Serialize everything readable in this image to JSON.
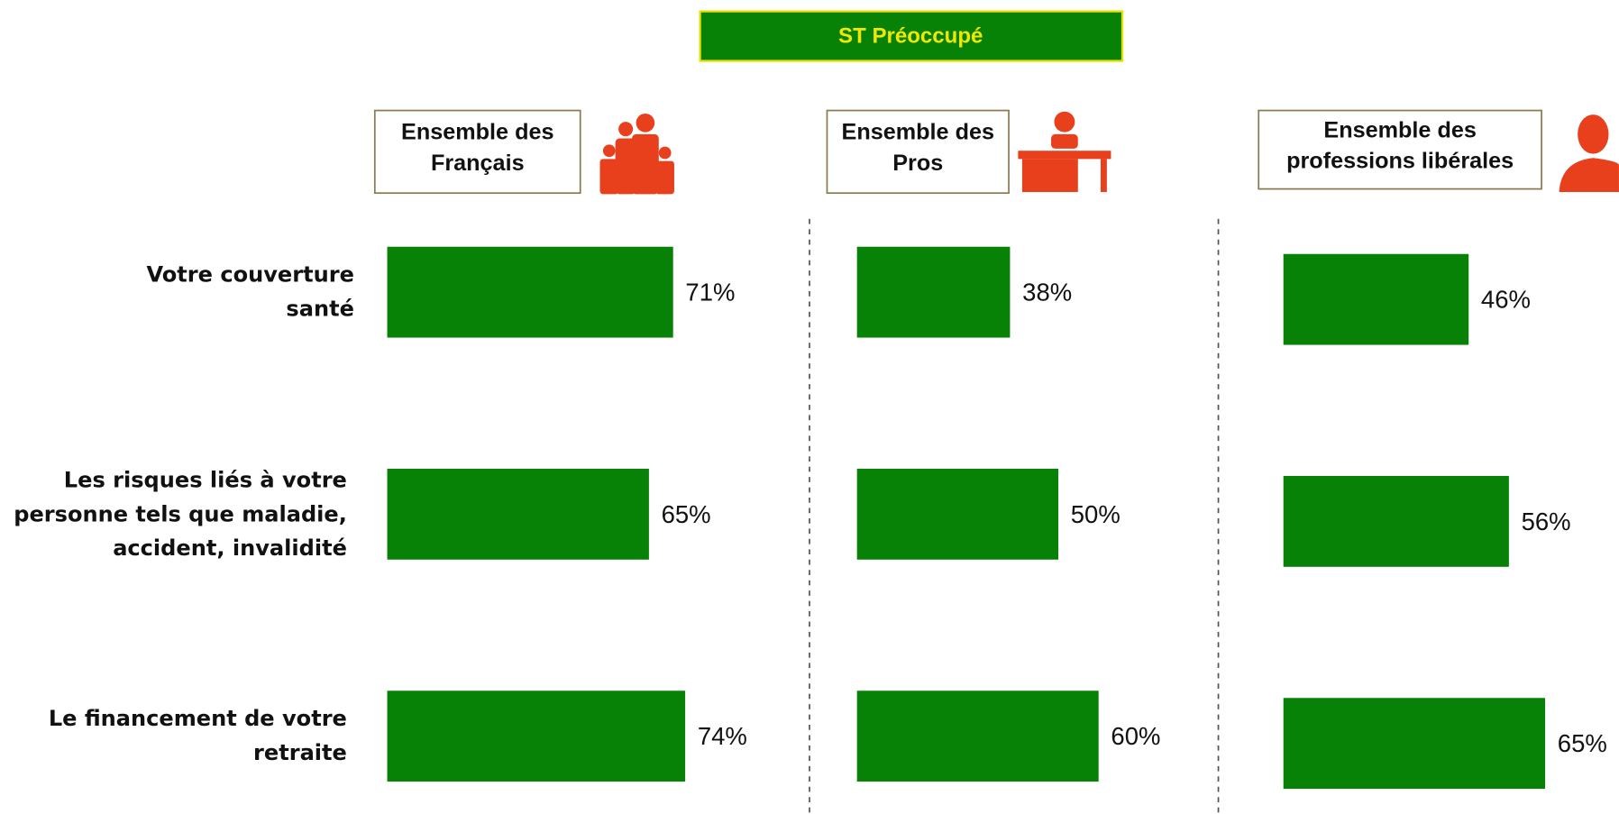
{
  "chart_data": {
    "type": "bar",
    "title": "ST Préoccupé",
    "categories": [
      "Votre couverture santé",
      "Les risques liés à votre personne tels que maladie, accident, invalidité",
      "Le financement de votre retraite"
    ],
    "series": [
      {
        "name": "Ensemble des Français",
        "color": "#078207",
        "values": [
          71,
          65,
          74
        ],
        "value_labels": [
          "71%",
          "65%",
          "74%"
        ]
      },
      {
        "name": "Ensemble des Pros",
        "color": "#078207",
        "values": [
          38,
          50,
          60
        ],
        "value_labels": [
          "38%",
          "50%",
          "60%"
        ]
      },
      {
        "name": "Ensemble des professions libérales",
        "color": "#078207",
        "values": [
          46,
          56,
          65
        ],
        "value_labels": [
          "46%",
          "56%",
          "65%"
        ]
      }
    ]
  }
}
